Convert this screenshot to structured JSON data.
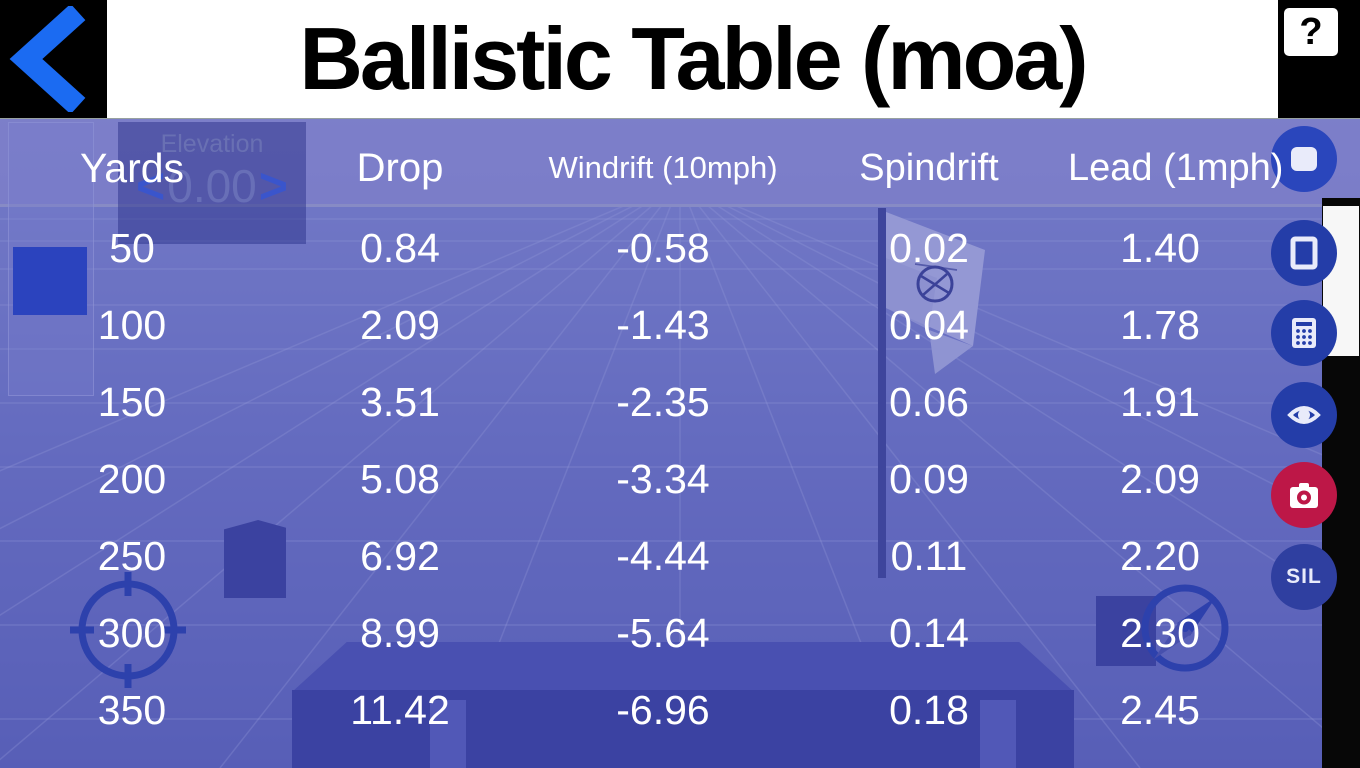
{
  "header": {
    "title": "Ballistic Table (moa)",
    "help_label": "?"
  },
  "elevation": {
    "label": "Elevation",
    "value": "0.00",
    "dec_label": "<",
    "inc_label": ">"
  },
  "table": {
    "columns": [
      "Yards",
      "Drop",
      "Windrift (10mph)",
      "Spindrift",
      "Lead (1mph)"
    ],
    "rows": [
      [
        "50",
        "0.84",
        "-0.58",
        "0.02",
        "1.40"
      ],
      [
        "100",
        "2.09",
        "-1.43",
        "0.04",
        "1.78"
      ],
      [
        "150",
        "3.51",
        "-2.35",
        "0.06",
        "1.91"
      ],
      [
        "200",
        "5.08",
        "-3.34",
        "0.09",
        "2.09"
      ],
      [
        "250",
        "6.92",
        "-4.44",
        "0.11",
        "2.20"
      ],
      [
        "300",
        "8.99",
        "-5.64",
        "0.14",
        "2.30"
      ],
      [
        "350",
        "11.42",
        "-6.96",
        "0.18",
        "2.45"
      ]
    ]
  },
  "side_buttons": {
    "sil_label": "SIL"
  },
  "icons": {
    "back-arrow-icon": "❮",
    "help-icon": "?",
    "monitor-icon": "▣",
    "window-icon": "▢",
    "calculator-icon": "⌸",
    "eye-icon": "👁",
    "camera-icon": "📷",
    "crosshair-icon": "⌖",
    "compass-icon": "➤",
    "flag-icon": "⚑",
    "scrollbar-thumb": "▮"
  },
  "colors": {
    "accent_blue": "#1b6bf2",
    "button_blue": "#243da8",
    "camera_red": "#bd1747",
    "overlay_tint": "#4950ba",
    "header_bg": "#000000",
    "title_bg": "#ffffff",
    "table_text": "#ffffff"
  }
}
